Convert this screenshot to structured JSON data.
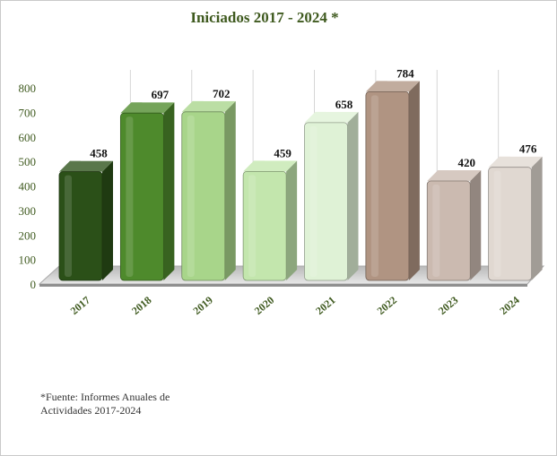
{
  "chart_data": {
    "type": "bar",
    "title": "Iniciados  2017 - 2024 *",
    "categories": [
      "2017",
      "2018",
      "2019",
      "2020",
      "2021",
      "2022",
      "2023",
      "2024"
    ],
    "values": [
      458,
      697,
      702,
      459,
      658,
      784,
      420,
      476
    ],
    "ylim": [
      0,
      800
    ],
    "yticks": [
      0,
      100,
      200,
      300,
      400,
      500,
      600,
      700,
      800
    ],
    "xlabel": "",
    "ylabel": "",
    "grid": false,
    "data_labels": true,
    "colors": [
      "#2b5018",
      "#4e8a2c",
      "#a8d58a",
      "#c3e6ad",
      "#dff2d6",
      "#b09482",
      "#cbbab0",
      "#e0d8d1"
    ],
    "note": "*Fuente: Informes Anuales de Actividades 2017-2024"
  }
}
